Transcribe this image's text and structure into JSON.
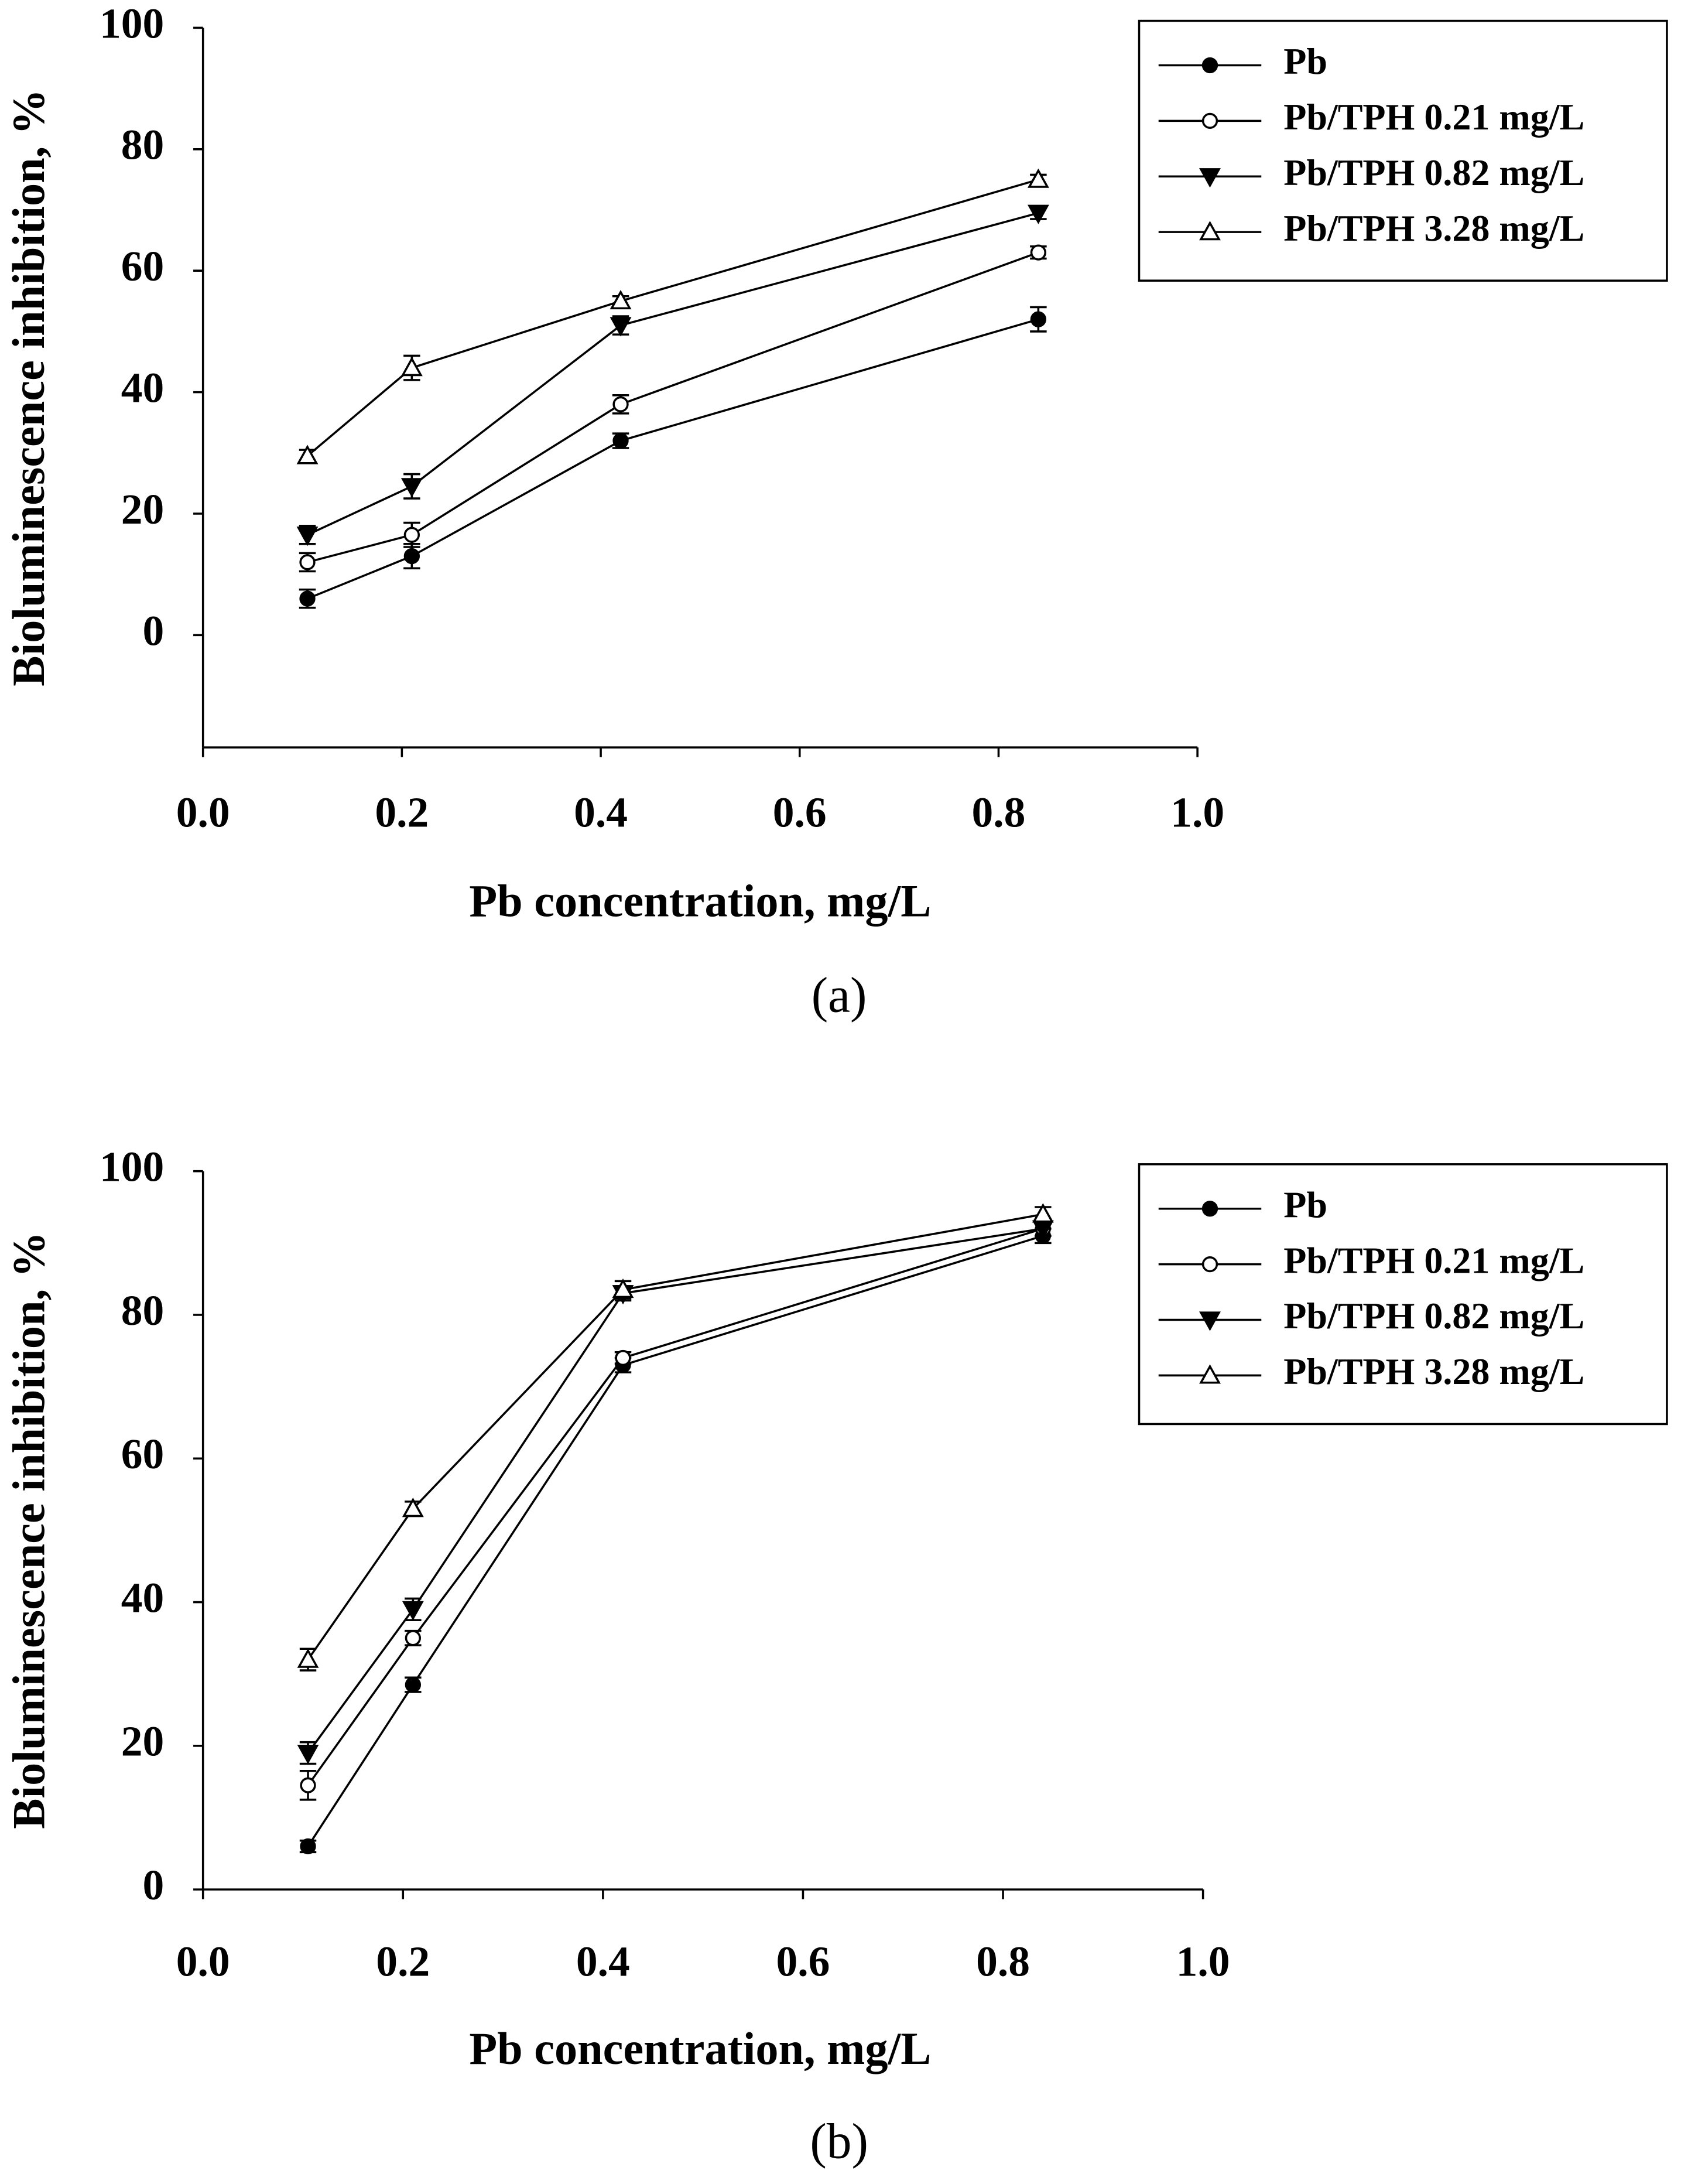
{
  "chart_data": [
    {
      "type": "line",
      "caption": "(a)",
      "x_label": "Pb concentration, mg/L",
      "y_label": "Bioluminescence inhibition, %",
      "x": [
        0.105,
        0.21,
        0.42,
        0.84
      ],
      "xlim": [
        0,
        1
      ],
      "xticks": [
        {
          "value": 0,
          "label": "0.0"
        },
        0.2,
        0.4,
        0.6,
        0.8,
        {
          "value": 1,
          "label": "1.0"
        }
      ],
      "ylim": [
        -18.5,
        100
      ],
      "yticks": [
        0,
        20,
        40,
        60,
        80,
        100
      ],
      "legend": "upper right",
      "series": [
        {
          "name": "Pb",
          "color": "#000000",
          "marker": "circle",
          "filled": true,
          "values": [
            6,
            13,
            32,
            52
          ],
          "errors": [
            1.5,
            2,
            1.2,
            2
          ]
        },
        {
          "name": "Pb/TPH 0.21 mg/L",
          "color": "#000000",
          "marker": "circle",
          "filled": false,
          "values": [
            12,
            16.5,
            38,
            63
          ],
          "errors": [
            1.5,
            2,
            1.5,
            1
          ]
        },
        {
          "name": "Pb/TPH 0.82 mg/L",
          "color": "#000000",
          "marker": "triangle-down",
          "filled": true,
          "values": [
            16.5,
            24.5,
            51,
            69.5
          ],
          "errors": [
            1.5,
            2,
            1.5,
            1
          ]
        },
        {
          "name": "Pb/TPH 3.28 mg/L",
          "color": "#000000",
          "marker": "triangle-up",
          "filled": false,
          "values": [
            29.5,
            44,
            55,
            75
          ],
          "errors": [
            1,
            2,
            0.8,
            0.8
          ]
        }
      ]
    },
    {
      "type": "line",
      "caption": "(b)",
      "x_label": "Pb concentration, mg/L",
      "y_label": "Bioluminescence inhibition, %",
      "x": [
        0.105,
        0.21,
        0.42,
        0.84
      ],
      "xlim": [
        0,
        1
      ],
      "xticks": [
        {
          "value": 0,
          "label": "0.0"
        },
        0.2,
        0.4,
        0.6,
        0.8,
        {
          "value": 1,
          "label": "1.0"
        }
      ],
      "ylim": [
        0,
        100
      ],
      "yticks": [
        0,
        20,
        40,
        60,
        80,
        100
      ],
      "legend": "upper right",
      "series": [
        {
          "name": "Pb",
          "color": "#000000",
          "marker": "circle",
          "filled": true,
          "values": [
            6,
            28.5,
            73,
            91
          ],
          "errors": [
            0.8,
            1,
            1,
            1
          ]
        },
        {
          "name": "Pb/TPH 0.21 mg/L",
          "color": "#000000",
          "marker": "circle",
          "filled": false,
          "values": [
            14.5,
            35,
            74,
            92
          ],
          "errors": [
            2,
            1,
            0.8,
            1
          ]
        },
        {
          "name": "Pb/TPH 0.82 mg/L",
          "color": "#000000",
          "marker": "triangle-down",
          "filled": true,
          "values": [
            19,
            39,
            83,
            92
          ],
          "errors": [
            1.5,
            1.5,
            1,
            1
          ]
        },
        {
          "name": "Pb/TPH 3.28 mg/L",
          "color": "#000000",
          "marker": "triangle-up",
          "filled": false,
          "values": [
            32,
            53,
            83.5,
            94
          ],
          "errors": [
            1.5,
            1,
            1.2,
            1
          ]
        }
      ]
    }
  ]
}
